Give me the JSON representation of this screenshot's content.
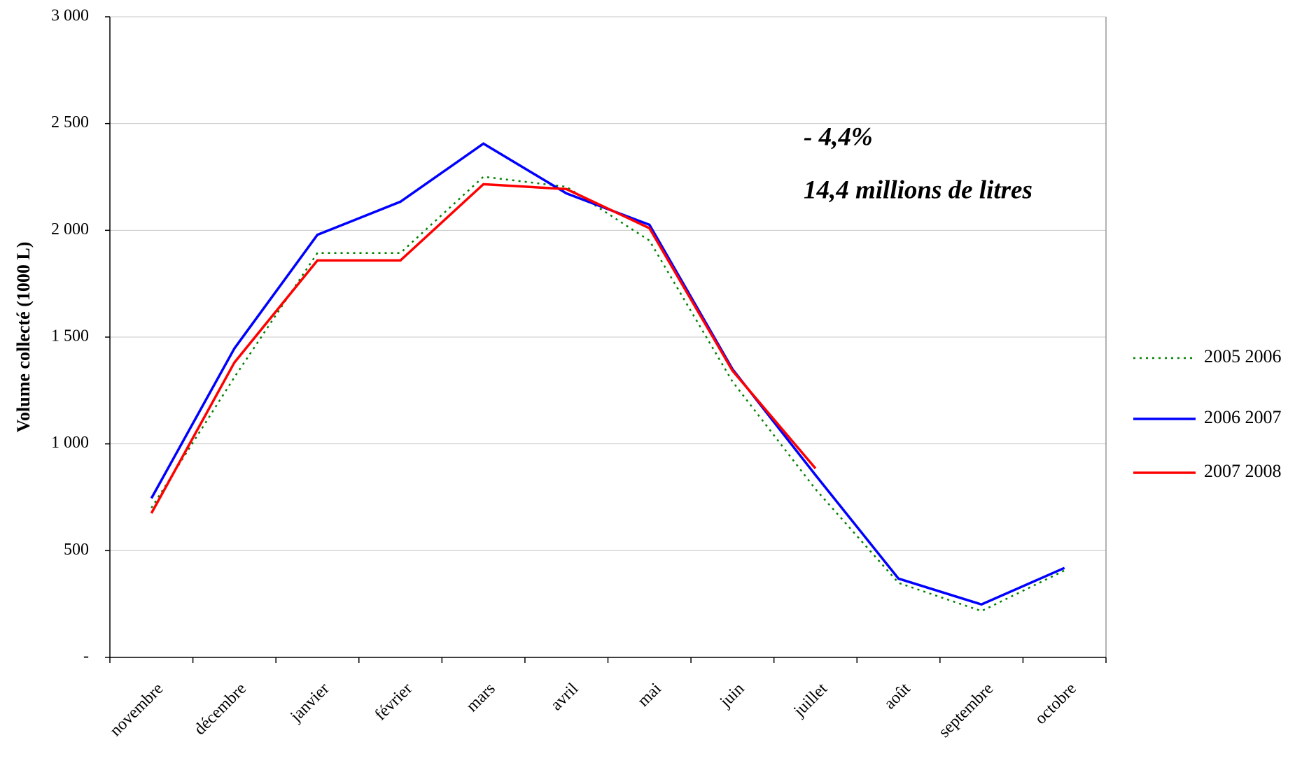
{
  "chart_data": {
    "type": "line",
    "y_label": "Volume collecté (1000 L)",
    "annotations": [
      "- 4,4%",
      "14,4 millions de litres"
    ],
    "annotation_color": "#ff0000",
    "categories": [
      "novembre",
      "décembre",
      "janvier",
      "février",
      "mars",
      "avril",
      "mai",
      "juin",
      "juillet",
      "août",
      "septembre",
      "octobre"
    ],
    "series": [
      {
        "name": "2005 2006",
        "color": "#008000",
        "line_style": "dotted",
        "values": [
          700,
          1312,
          1894,
          1894,
          2251,
          2204,
          1952,
          1292,
          788,
          349,
          217,
          407
        ]
      },
      {
        "name": "2006 2007",
        "color": "#0000ff",
        "line_style": "solid",
        "values": [
          745,
          1447,
          1979,
          2134,
          2406,
          2173,
          2026,
          1350,
          854,
          369,
          248,
          419
        ]
      },
      {
        "name": "2007 2008",
        "color": "#ff0000",
        "line_style": "solid",
        "values": [
          675,
          1381,
          1859,
          1859,
          2216,
          2193,
          2010,
          1343,
          885,
          null,
          null,
          null
        ]
      }
    ],
    "ylim": [
      0,
      3000
    ],
    "yticks": [
      {
        "value": 0,
        "label": "-"
      },
      500,
      {
        "value": 1000,
        "label": "1 000"
      },
      {
        "value": 1500,
        "label": "1 500"
      },
      {
        "value": 2000,
        "label": "2 000"
      },
      {
        "value": 2500,
        "label": "2 500"
      },
      {
        "value": 3000,
        "label": "3 000"
      }
    ],
    "grid": true,
    "legend": "right"
  }
}
